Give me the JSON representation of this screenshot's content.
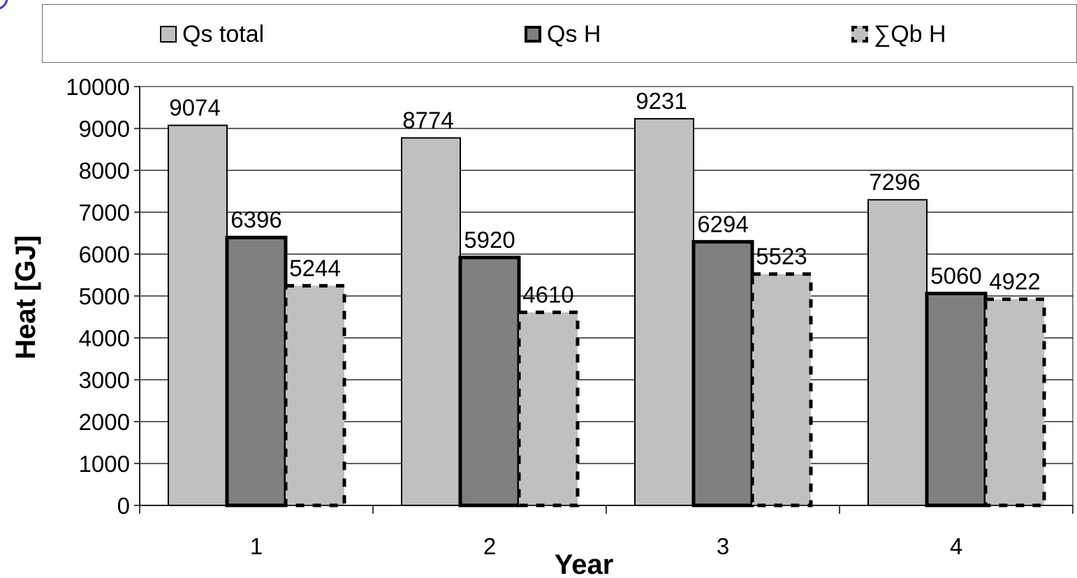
{
  "chart_data": {
    "type": "bar",
    "categories": [
      "1",
      "2",
      "3",
      "4"
    ],
    "series": [
      {
        "name": "Qs total",
        "values": [
          9074,
          8774,
          9231,
          7296
        ],
        "color": "#c0c0c0",
        "border": "solid-thin"
      },
      {
        "name": "Qs H",
        "values": [
          6396,
          5920,
          6294,
          5060
        ],
        "color": "#808080",
        "border": "solid-thick"
      },
      {
        "name": "∑Qb H",
        "values": [
          5244,
          4610,
          5523,
          4922
        ],
        "color": "#c0c0c0",
        "border": "dashed-thick"
      }
    ],
    "data_labels": [
      [
        "9074",
        "8774",
        "9231",
        "7296"
      ],
      [
        "6396",
        "5920",
        "6294",
        "5060"
      ],
      [
        "5244",
        "4610",
        "5523",
        "4922"
      ]
    ],
    "xlabel": "Year",
    "ylabel": "Heat [GJ]",
    "ylim": [
      0,
      10000
    ],
    "yticks": [
      0,
      1000,
      2000,
      3000,
      4000,
      5000,
      6000,
      7000,
      8000,
      9000,
      10000
    ],
    "ytick_labels": [
      "0",
      "1000",
      "2000",
      "3000",
      "4000",
      "5000",
      "6000",
      "7000",
      "8000",
      "9000",
      "10000"
    ],
    "grid": "horizontal",
    "legend": "top",
    "plot_background": "#ffffff",
    "gridline_color": "#000000"
  }
}
